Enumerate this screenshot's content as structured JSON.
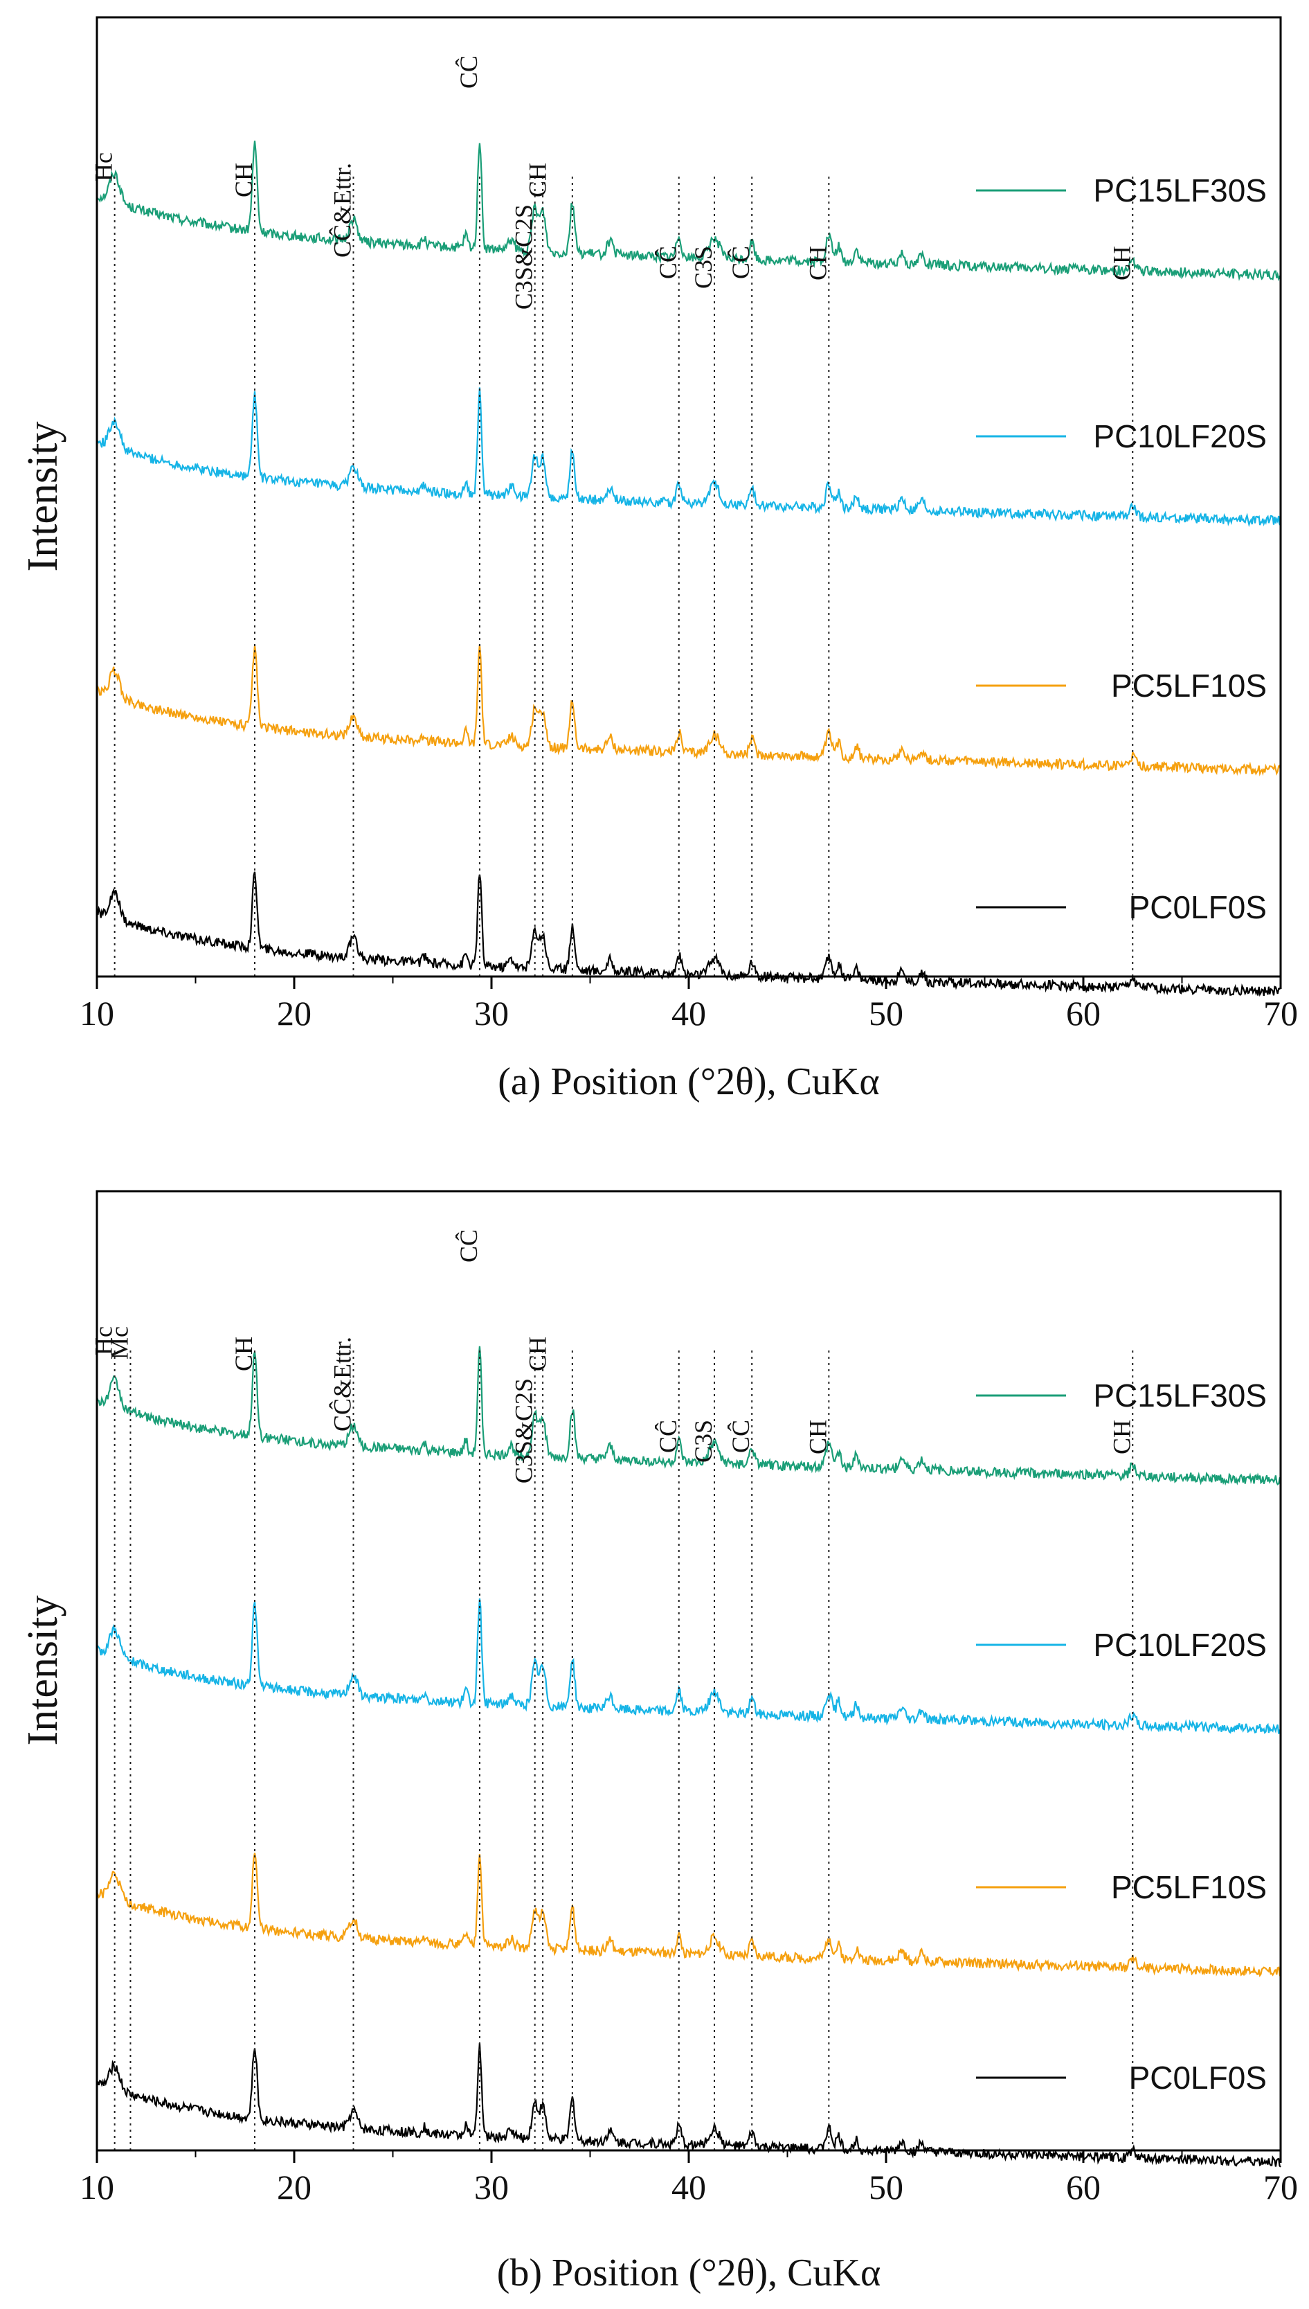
{
  "chart_data": [
    {
      "type": "line",
      "title": "",
      "xlabel": "(a) Position (°2θ), CuKα",
      "ylabel": "Intensity",
      "xlim": [
        10,
        70
      ],
      "xticks": [
        "10",
        "20",
        "30",
        "40",
        "50",
        "60",
        "70"
      ],
      "series": [
        {
          "name": "PC15LF30S",
          "color": "#1a9e77"
        },
        {
          "name": "PC10LF20S",
          "color": "#16b4e6"
        },
        {
          "name": "PC5LF10S",
          "color": "#f5a00f"
        },
        {
          "name": "PC0LF0S",
          "color": "#000000"
        }
      ],
      "reference_peaks": [
        10.9,
        18.0,
        23.0,
        29.4,
        32.2,
        32.6,
        34.1,
        39.5,
        41.3,
        43.2,
        47.1,
        62.5
      ],
      "annotations": [
        {
          "text": "Hc",
          "x": 10.9
        },
        {
          "text": "CH",
          "x": 18.0
        },
        {
          "text": "CĈ&Ettr.",
          "x": 23.0
        },
        {
          "text": "CĈ",
          "x": 29.4
        },
        {
          "text": "C3S&C2S",
          "x": 32.2
        },
        {
          "text": "CH",
          "x": 32.9
        },
        {
          "text": "CĈ",
          "x": 39.5
        },
        {
          "text": "C3S",
          "x": 41.3
        },
        {
          "text": "CĈ",
          "x": 43.2
        },
        {
          "text": "CH",
          "x": 47.1
        },
        {
          "text": "CH",
          "x": 62.5
        }
      ]
    },
    {
      "type": "line",
      "title": "",
      "xlabel": "(b) Position (°2θ), CuKα",
      "ylabel": "Intensity",
      "xlim": [
        10,
        70
      ],
      "xticks": [
        "10",
        "20",
        "30",
        "40",
        "50",
        "60",
        "70"
      ],
      "series": [
        {
          "name": "PC15LF30S",
          "color": "#1a9e77"
        },
        {
          "name": "PC10LF20S",
          "color": "#16b4e6"
        },
        {
          "name": "PC5LF10S",
          "color": "#f5a00f"
        },
        {
          "name": "PC0LF0S",
          "color": "#000000"
        }
      ],
      "reference_peaks": [
        10.9,
        11.7,
        18.0,
        23.0,
        29.4,
        32.2,
        32.6,
        34.1,
        39.5,
        41.3,
        43.2,
        47.1,
        62.5
      ],
      "annotations": [
        {
          "text": "Hc",
          "x": 10.9
        },
        {
          "text": "Mc",
          "x": 11.7
        },
        {
          "text": "CH",
          "x": 18.0
        },
        {
          "text": "CĈ&Ettr.",
          "x": 23.0
        },
        {
          "text": "CĈ",
          "x": 29.4
        },
        {
          "text": "C3S&C2S",
          "x": 32.2
        },
        {
          "text": "CH",
          "x": 32.9
        },
        {
          "text": "CĈ",
          "x": 39.5
        },
        {
          "text": "C3S",
          "x": 41.3
        },
        {
          "text": "CĈ",
          "x": 43.2
        },
        {
          "text": "CH",
          "x": 47.1
        },
        {
          "text": "CH",
          "x": 62.5
        }
      ]
    }
  ]
}
